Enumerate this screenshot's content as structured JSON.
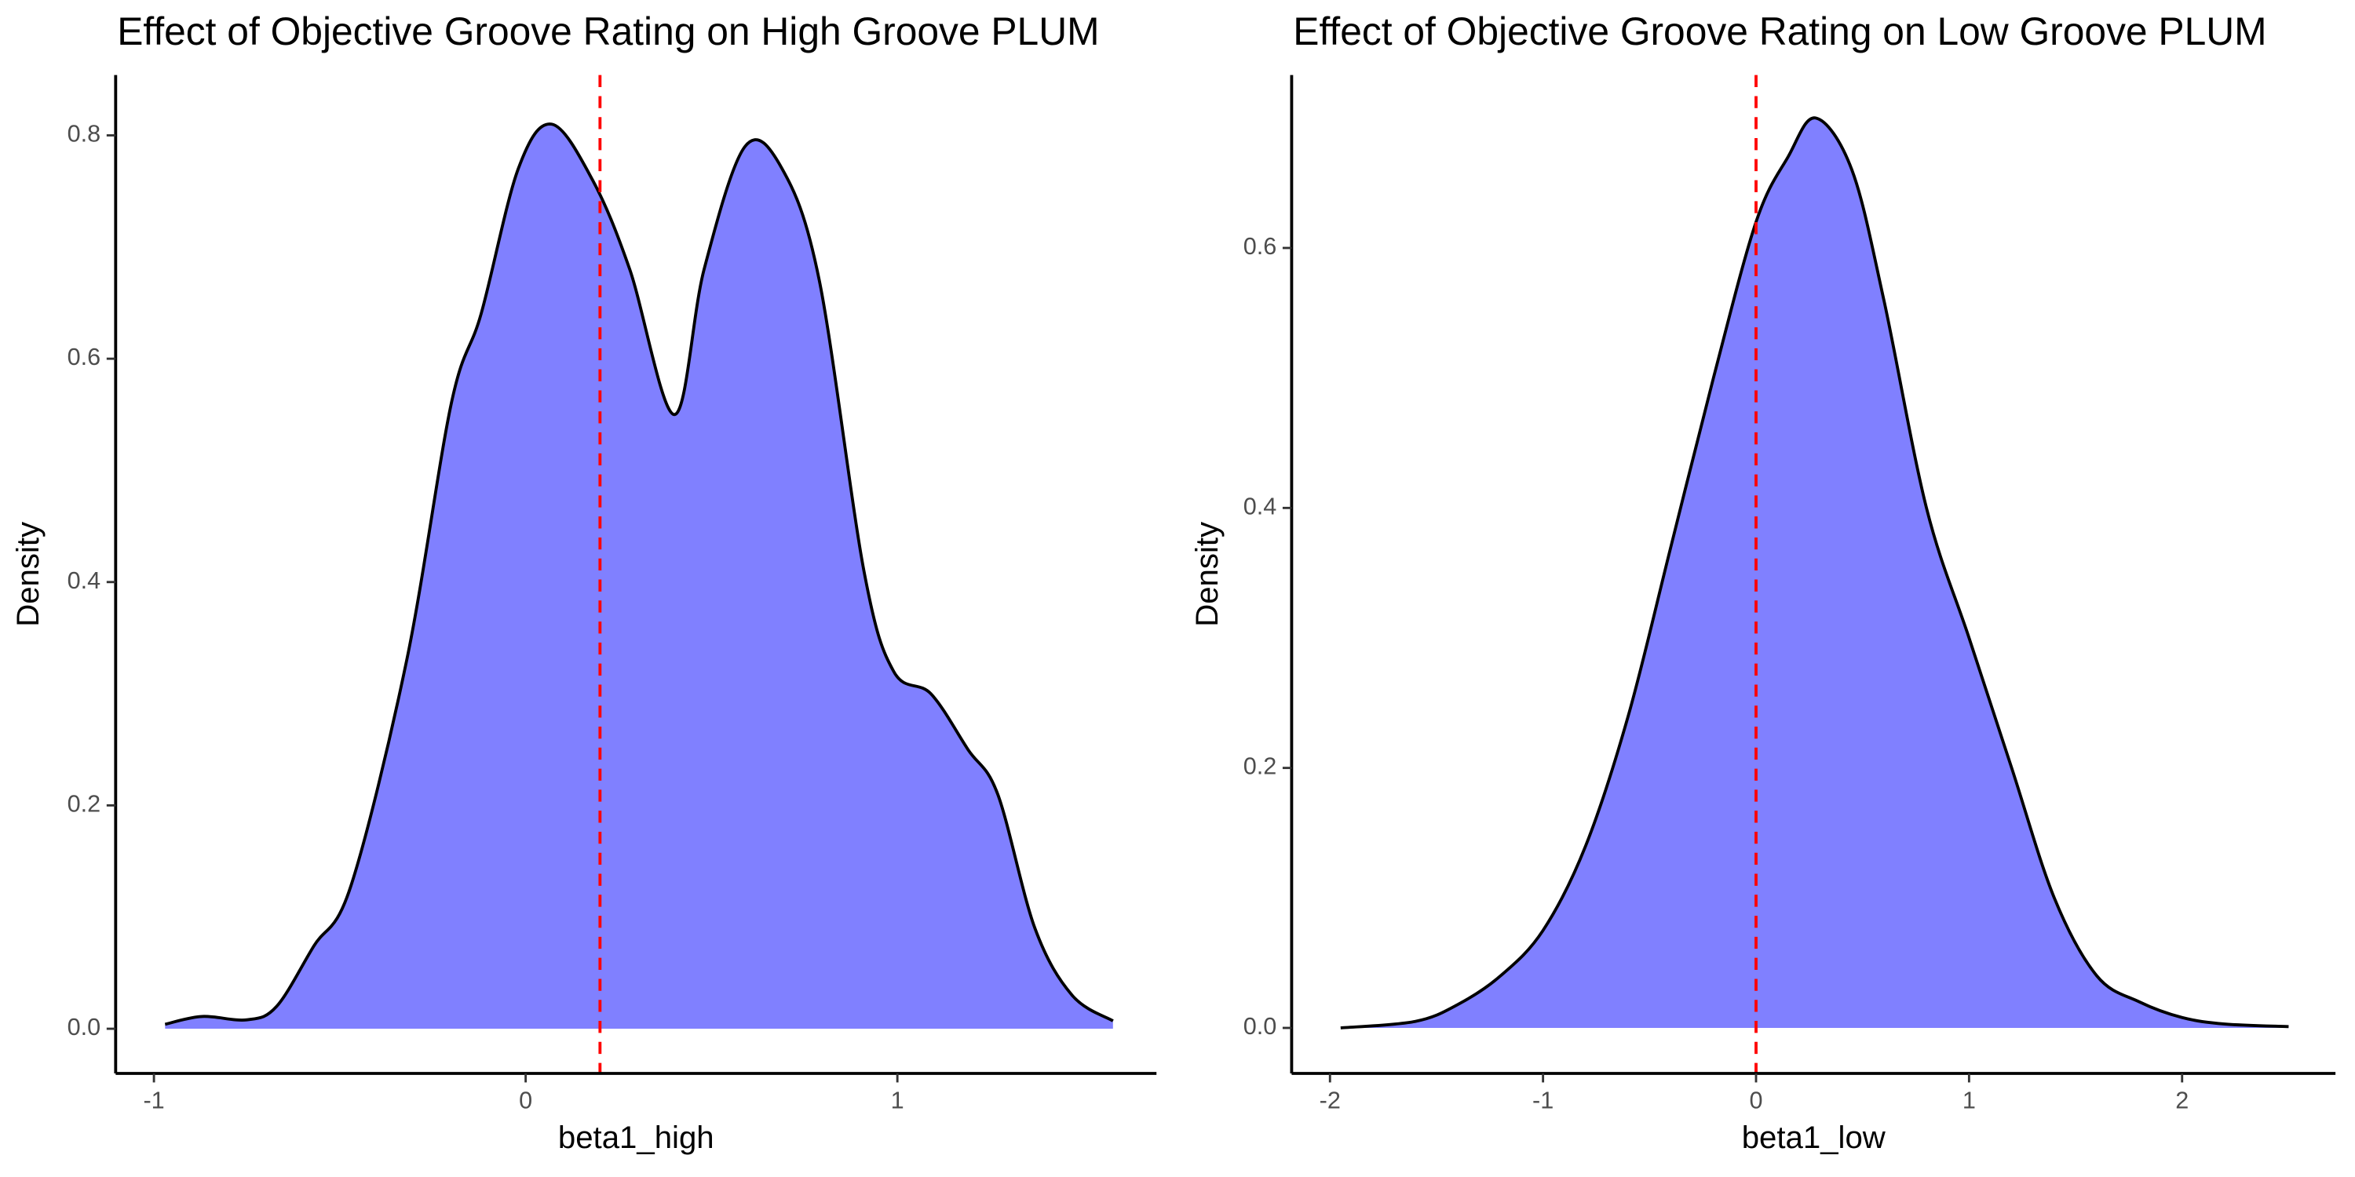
{
  "chart_data": [
    {
      "type": "density",
      "title": "Effect of Objective Groove Rating on High Groove PLUM",
      "x_label": "beta1_high",
      "y_label": "Density",
      "fill": "#8080ff",
      "line_color": "#000000",
      "vline": 0.2,
      "vline_color": "#ff0000",
      "x": [
        -0.97,
        -0.87,
        -0.75,
        -0.67,
        -0.57,
        -0.47,
        -0.32,
        -0.2,
        -0.12,
        -0.02,
        0.07,
        0.18,
        0.28,
        0.4,
        0.48,
        0.59,
        0.69,
        0.79,
        0.91,
        0.99,
        1.09,
        1.19,
        1.27,
        1.37,
        1.47,
        1.58
      ],
      "values": [
        0.004,
        0.011,
        0.008,
        0.02,
        0.074,
        0.128,
        0.33,
        0.56,
        0.64,
        0.77,
        0.81,
        0.76,
        0.68,
        0.55,
        0.68,
        0.79,
        0.77,
        0.67,
        0.41,
        0.32,
        0.3,
        0.25,
        0.21,
        0.09,
        0.03,
        0.007
      ],
      "xlim": [
        -1.103,
        1.697
      ],
      "ylim": [
        -0.04,
        0.854
      ],
      "xticks": [
        -1,
        0,
        1
      ],
      "yticks": [
        {
          "value": 0,
          "label": "0.0"
        },
        0.2,
        0.4,
        0.6,
        0.8
      ]
    },
    {
      "type": "density",
      "title": "Effect of Objective Groove Rating on Low Groove PLUM",
      "x_label": "beta1_low",
      "y_label": "Density",
      "fill": "#8080ff",
      "line_color": "#000000",
      "vline": 0,
      "vline_color": "#ff0000",
      "x": [
        -1.95,
        -1.6,
        -1.4,
        -1.2,
        -1.0,
        -0.8,
        -0.6,
        -0.4,
        -0.2,
        0,
        0.15,
        0.28,
        0.45,
        0.6,
        0.8,
        1.0,
        1.2,
        1.4,
        1.6,
        1.8,
        2.0,
        2.2,
        2.5
      ],
      "values": [
        0.0,
        0.005,
        0.018,
        0.04,
        0.075,
        0.14,
        0.24,
        0.37,
        0.5,
        0.62,
        0.67,
        0.7,
        0.66,
        0.56,
        0.4,
        0.3,
        0.2,
        0.1,
        0.04,
        0.02,
        0.008,
        0.003,
        0.001
      ],
      "xlim": [
        -2.18,
        2.72
      ],
      "ylim": [
        -0.035,
        0.733
      ],
      "xticks": [
        -2,
        -1,
        0,
        1,
        2
      ],
      "yticks": [
        {
          "value": 0,
          "label": "0.0"
        },
        0.2,
        0.4,
        0.6
      ]
    }
  ]
}
